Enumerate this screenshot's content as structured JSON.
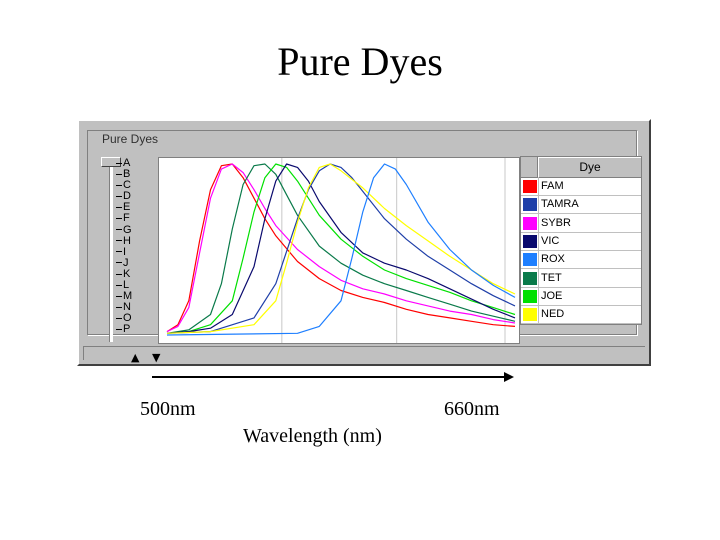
{
  "slide": {
    "title": "Pure Dyes",
    "wavelength_start": "500nm",
    "wavelength_end": "660nm",
    "axis_label": "Wavelength (nm)"
  },
  "window": {
    "group_title": "Pure Dyes",
    "filter_letters": [
      "A",
      "B",
      "C",
      "D",
      "E",
      "F",
      "G",
      "H",
      "I",
      "J",
      "K",
      "L",
      "M",
      "N",
      "O",
      "P"
    ]
  },
  "legend": {
    "header": "Dye",
    "dyes": [
      {
        "name": "FAM",
        "color": "#ff0000"
      },
      {
        "name": "TAMRA",
        "color": "#1f3fa8"
      },
      {
        "name": "SYBR",
        "color": "#ff00ff"
      },
      {
        "name": "VIC",
        "color": "#0a0a6e"
      },
      {
        "name": "ROX",
        "color": "#1e7fff"
      },
      {
        "name": "TET",
        "color": "#0a7a4a"
      },
      {
        "name": "JOE",
        "color": "#00e000"
      },
      {
        "name": "NED",
        "color": "#ffff00"
      }
    ]
  },
  "chart_data": {
    "type": "line",
    "title": "",
    "xlabel": "Wavelength (nm)",
    "ylabel": "",
    "x_range": [
      500,
      660
    ],
    "grid": true,
    "series": [
      {
        "name": "FAM",
        "color": "#ff0000",
        "x": [
          500,
          505,
          510,
          515,
          520,
          525,
          530,
          535,
          540,
          545,
          550,
          560,
          570,
          580,
          590,
          600,
          610,
          620,
          630,
          640,
          650,
          660
        ],
        "y": [
          0.02,
          0.06,
          0.2,
          0.55,
          0.85,
          0.99,
          1.0,
          0.92,
          0.8,
          0.68,
          0.58,
          0.43,
          0.33,
          0.26,
          0.22,
          0.19,
          0.15,
          0.12,
          0.1,
          0.08,
          0.06,
          0.05
        ]
      },
      {
        "name": "SYBR",
        "color": "#ff00ff",
        "x": [
          500,
          505,
          510,
          515,
          520,
          525,
          530,
          535,
          540,
          545,
          550,
          560,
          570,
          580,
          590,
          600,
          610,
          620,
          630,
          640,
          650,
          660
        ],
        "y": [
          0.02,
          0.05,
          0.16,
          0.48,
          0.8,
          0.97,
          1.0,
          0.95,
          0.85,
          0.74,
          0.64,
          0.5,
          0.4,
          0.32,
          0.27,
          0.24,
          0.2,
          0.17,
          0.14,
          0.12,
          0.09,
          0.07
        ]
      },
      {
        "name": "TET",
        "color": "#0a7a4a",
        "x": [
          500,
          510,
          520,
          525,
          530,
          535,
          540,
          545,
          550,
          555,
          560,
          570,
          580,
          590,
          600,
          610,
          620,
          630,
          640,
          650,
          660
        ],
        "y": [
          0.01,
          0.03,
          0.12,
          0.3,
          0.62,
          0.88,
          0.99,
          1.0,
          0.94,
          0.82,
          0.7,
          0.52,
          0.42,
          0.35,
          0.3,
          0.26,
          0.22,
          0.18,
          0.14,
          0.11,
          0.08
        ]
      },
      {
        "name": "JOE",
        "color": "#00e000",
        "x": [
          500,
          510,
          520,
          530,
          535,
          540,
          545,
          550,
          555,
          560,
          565,
          570,
          580,
          590,
          600,
          610,
          620,
          630,
          640,
          650,
          660
        ],
        "y": [
          0.01,
          0.02,
          0.06,
          0.2,
          0.45,
          0.72,
          0.92,
          1.0,
          0.98,
          0.9,
          0.8,
          0.7,
          0.56,
          0.46,
          0.38,
          0.33,
          0.29,
          0.25,
          0.2,
          0.16,
          0.12
        ]
      },
      {
        "name": "VIC",
        "color": "#0a0a6e",
        "x": [
          500,
          510,
          520,
          530,
          540,
          545,
          550,
          555,
          560,
          565,
          570,
          580,
          590,
          600,
          610,
          620,
          630,
          640,
          650,
          660
        ],
        "y": [
          0.01,
          0.02,
          0.04,
          0.12,
          0.4,
          0.68,
          0.9,
          1.0,
          0.98,
          0.9,
          0.78,
          0.6,
          0.48,
          0.42,
          0.38,
          0.33,
          0.27,
          0.21,
          0.15,
          0.1
        ]
      },
      {
        "name": "TAMRA",
        "color": "#1f3fa8",
        "x": [
          500,
          520,
          540,
          550,
          560,
          565,
          570,
          575,
          580,
          585,
          590,
          600,
          610,
          620,
          630,
          640,
          650,
          660
        ],
        "y": [
          0.01,
          0.02,
          0.1,
          0.3,
          0.68,
          0.85,
          0.96,
          1.0,
          0.98,
          0.92,
          0.84,
          0.68,
          0.56,
          0.46,
          0.38,
          0.3,
          0.23,
          0.17
        ]
      },
      {
        "name": "NED",
        "color": "#ffff00",
        "x": [
          500,
          520,
          540,
          550,
          555,
          560,
          565,
          570,
          575,
          580,
          590,
          600,
          610,
          620,
          630,
          640,
          650,
          660
        ],
        "y": [
          0.01,
          0.02,
          0.06,
          0.2,
          0.42,
          0.66,
          0.86,
          0.98,
          1.0,
          0.96,
          0.86,
          0.74,
          0.64,
          0.55,
          0.46,
          0.38,
          0.3,
          0.24
        ]
      },
      {
        "name": "ROX",
        "color": "#1e7fff",
        "x": [
          500,
          560,
          570,
          580,
          585,
          590,
          595,
          600,
          605,
          610,
          620,
          630,
          640,
          650,
          660
        ],
        "y": [
          0.0,
          0.01,
          0.05,
          0.2,
          0.45,
          0.72,
          0.92,
          1.0,
          0.97,
          0.88,
          0.66,
          0.5,
          0.38,
          0.29,
          0.22
        ]
      }
    ]
  }
}
